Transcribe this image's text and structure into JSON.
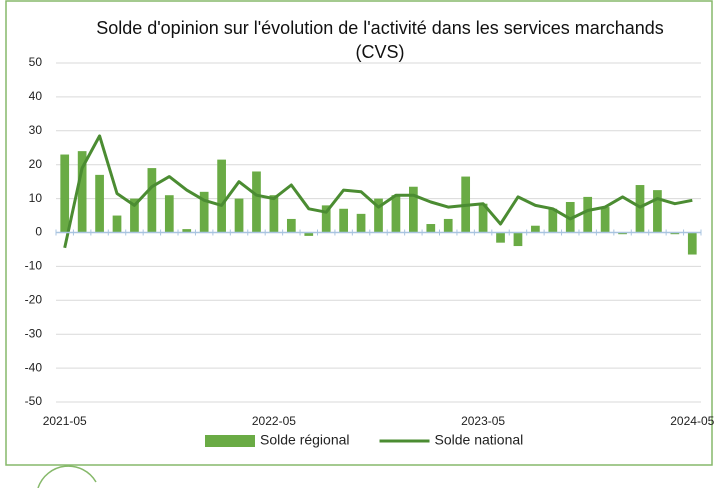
{
  "chart_data": {
    "type": "bar_line",
    "title": "Solde d'opinion sur l'évolution de l'activité dans les services marchands (CVS)",
    "categories": [
      "2021-05",
      null,
      null,
      null,
      null,
      null,
      null,
      null,
      null,
      null,
      null,
      null,
      "2022-05",
      null,
      null,
      null,
      null,
      null,
      null,
      null,
      null,
      null,
      null,
      null,
      "2023-05",
      null,
      null,
      null,
      null,
      null,
      null,
      null,
      null,
      null,
      null,
      null,
      "2024-05"
    ],
    "series": [
      {
        "name": "Solde régional",
        "type": "bar",
        "color": "#6aab45",
        "values": [
          23,
          24,
          17,
          5,
          10,
          19,
          11,
          1,
          12,
          21.5,
          10,
          18,
          11,
          4,
          -1,
          8,
          7,
          5.5,
          10,
          11,
          13.5,
          2.5,
          4,
          16.5,
          8.5,
          -3,
          -4,
          2,
          7,
          9,
          10.5,
          7.5,
          -0.5,
          14,
          12.5,
          -0.5,
          -6.5
        ]
      },
      {
        "name": "Solde national",
        "type": "line",
        "color": "#4b8c32",
        "values": [
          -4.5,
          19,
          28.5,
          11.5,
          8,
          13.5,
          16.5,
          12.5,
          9.5,
          8,
          15,
          11,
          10,
          14,
          7,
          6,
          12.5,
          12,
          7.5,
          11,
          11,
          9,
          7.5,
          8,
          8.5,
          2.5,
          10.5,
          8,
          7,
          4,
          6.5,
          7.5,
          10.5,
          7.5,
          10,
          8.5,
          9.5
        ]
      }
    ],
    "ylim": [
      -50,
      50
    ],
    "yticks": [
      -50,
      -40,
      -30,
      -20,
      -10,
      0,
      10,
      20,
      30,
      40,
      50
    ],
    "grid": true,
    "legend": "bottom"
  }
}
